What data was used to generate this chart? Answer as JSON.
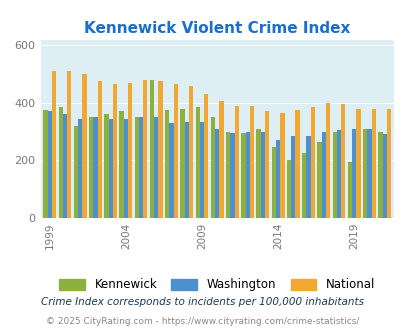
{
  "title": "Kennewick Violent Crime Index",
  "title_color": "#1a6fcc",
  "years": [
    1999,
    2000,
    2001,
    2002,
    2003,
    2004,
    2005,
    2006,
    2007,
    2008,
    2009,
    2010,
    2011,
    2012,
    2013,
    2014,
    2015,
    2016,
    2017,
    2018,
    2019,
    2020,
    2021
  ],
  "kennewick": [
    375,
    385,
    320,
    350,
    360,
    370,
    350,
    480,
    375,
    380,
    385,
    350,
    300,
    295,
    310,
    245,
    200,
    225,
    265,
    300,
    195,
    310,
    298
  ],
  "washington": [
    370,
    360,
    345,
    350,
    345,
    345,
    350,
    350,
    330,
    335,
    335,
    310,
    295,
    300,
    300,
    270,
    283,
    283,
    300,
    305,
    310,
    310,
    293
  ],
  "national": [
    510,
    510,
    500,
    475,
    465,
    470,
    480,
    475,
    465,
    460,
    430,
    405,
    390,
    390,
    370,
    365,
    375,
    385,
    400,
    395,
    380,
    380,
    380
  ],
  "kennewick_color": "#8db040",
  "washington_color": "#4d90d0",
  "national_color": "#f0a832",
  "bg_color": "#ddeef5",
  "ylim": [
    0,
    620
  ],
  "yticks": [
    0,
    200,
    400,
    600
  ],
  "xlabel_ticks": [
    1999,
    2004,
    2009,
    2014,
    2019
  ],
  "footnote1": "Crime Index corresponds to incidents per 100,000 inhabitants",
  "footnote2": "© 2025 CityRating.com - https://www.cityrating.com/crime-statistics/",
  "footnote1_color": "#1a3a5c",
  "footnote2_color": "#888888"
}
